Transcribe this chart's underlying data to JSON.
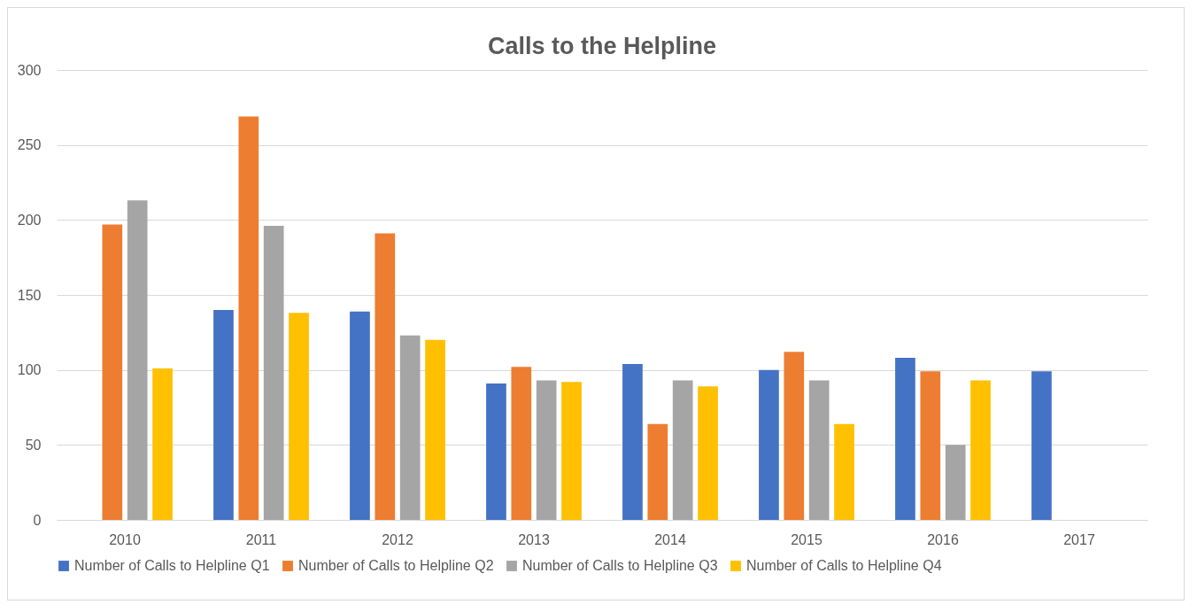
{
  "chart_data": {
    "type": "bar",
    "title": "Calls to the Helpline",
    "categories": [
      "2010",
      "2011",
      "2012",
      "2013",
      "2014",
      "2015",
      "2016",
      "2017"
    ],
    "series": [
      {
        "name": "Number of Calls to Helpline Q1",
        "color": "#4472c4",
        "values": [
          null,
          140,
          139,
          91,
          104,
          100,
          108,
          99
        ]
      },
      {
        "name": "Number of Calls to Helpline Q2",
        "color": "#ed7d31",
        "values": [
          197,
          269,
          191,
          102,
          64,
          112,
          99,
          null
        ]
      },
      {
        "name": "Number of Calls to Helpline Q3",
        "color": "#a5a5a5",
        "values": [
          213,
          196,
          123,
          93,
          93,
          93,
          50,
          null
        ]
      },
      {
        "name": "Number of Calls to Helpline Q4",
        "color": "#ffc000",
        "values": [
          101,
          138,
          120,
          92,
          89,
          64,
          93,
          null
        ]
      }
    ],
    "ylim": [
      0,
      300
    ],
    "yticks": [
      0,
      50,
      100,
      150,
      200,
      250,
      300
    ],
    "grid": "y",
    "legend": "bottom"
  }
}
